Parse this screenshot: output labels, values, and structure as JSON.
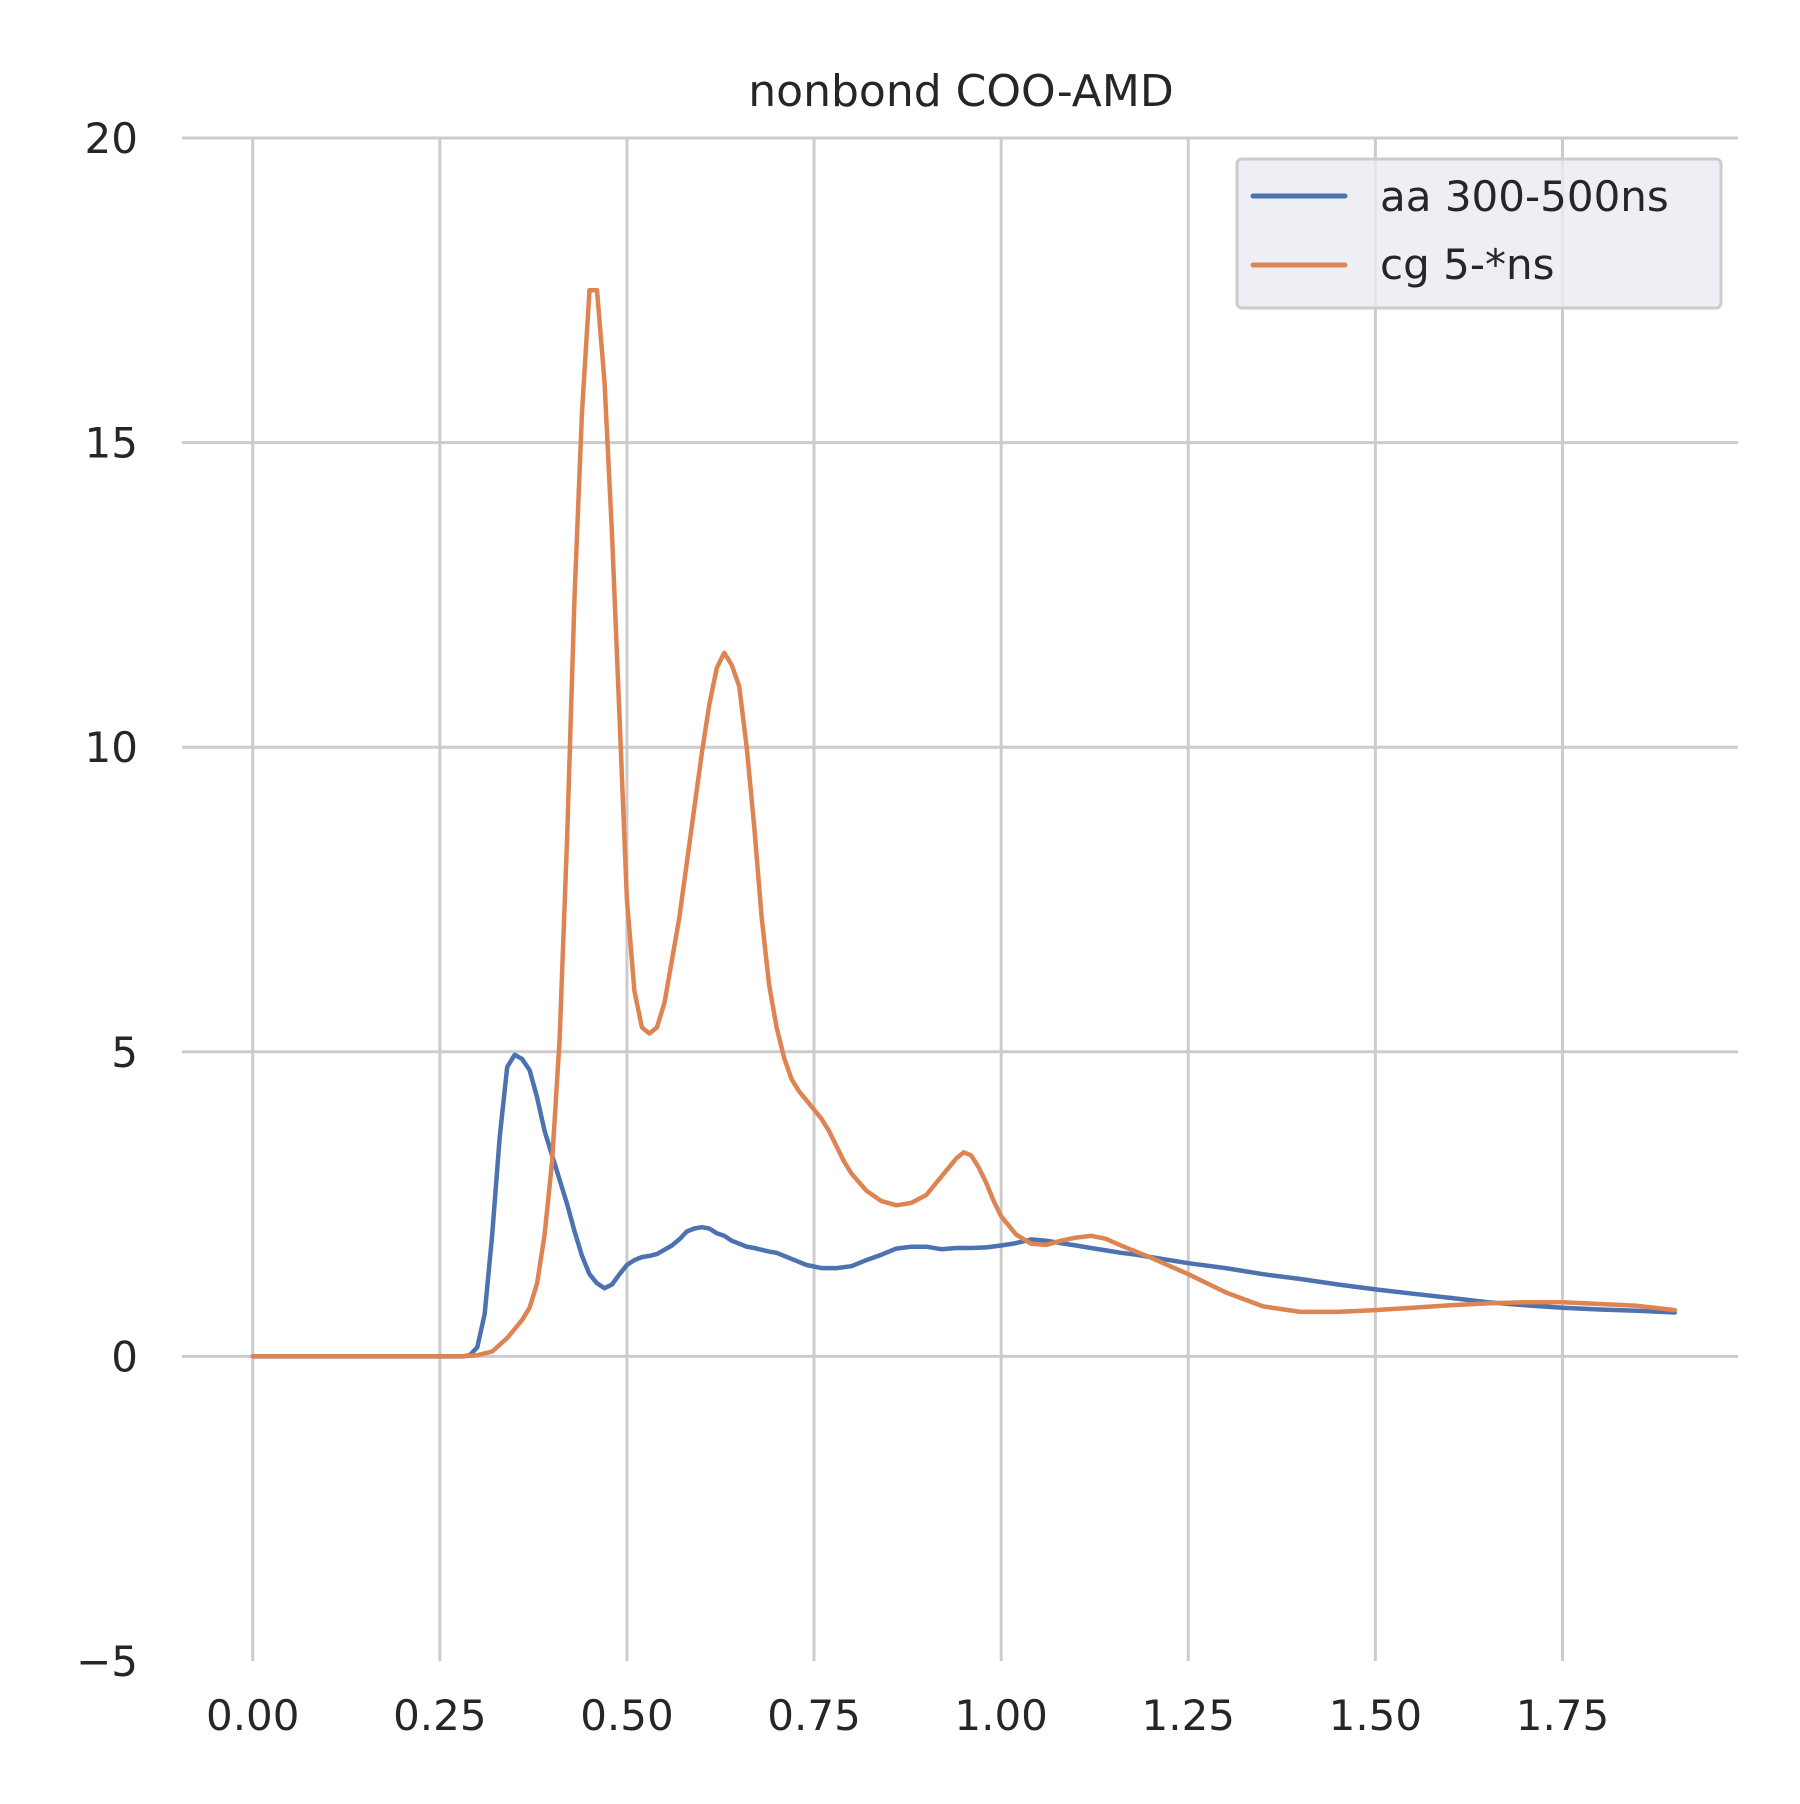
{
  "chart_data": {
    "type": "line",
    "title": "nonbond COO-AMD",
    "xlabel": "",
    "ylabel": "",
    "xlim": [
      -0.0945,
      1.9845
    ],
    "ylim": [
      -5,
      20
    ],
    "xticks": [
      0.0,
      0.25,
      0.5,
      0.75,
      1.0,
      1.25,
      1.5,
      1.75
    ],
    "xtick_labels": [
      "0.00",
      "0.25",
      "0.50",
      "0.75",
      "1.00",
      "1.25",
      "1.50",
      "1.75"
    ],
    "yticks": [
      -5,
      0,
      5,
      10,
      15,
      20
    ],
    "ytick_labels": [
      "−5",
      "0",
      "5",
      "10",
      "15",
      "20"
    ],
    "grid": true,
    "legend_position": "top-right",
    "series": [
      {
        "name": "aa 300-500ns",
        "color": "#4c72b0",
        "x": [
          0.0,
          0.25,
          0.28,
          0.29,
          0.3,
          0.31,
          0.32,
          0.33,
          0.34,
          0.35,
          0.36,
          0.37,
          0.38,
          0.39,
          0.4,
          0.41,
          0.42,
          0.43,
          0.44,
          0.45,
          0.46,
          0.47,
          0.48,
          0.49,
          0.5,
          0.51,
          0.52,
          0.53,
          0.54,
          0.55,
          0.56,
          0.57,
          0.58,
          0.59,
          0.6,
          0.61,
          0.62,
          0.63,
          0.64,
          0.65,
          0.66,
          0.67,
          0.68,
          0.69,
          0.7,
          0.72,
          0.74,
          0.76,
          0.78,
          0.8,
          0.82,
          0.84,
          0.86,
          0.88,
          0.9,
          0.92,
          0.94,
          0.96,
          0.98,
          1.0,
          1.02,
          1.04,
          1.06,
          1.08,
          1.1,
          1.12,
          1.14,
          1.16,
          1.18,
          1.2,
          1.25,
          1.3,
          1.35,
          1.4,
          1.45,
          1.5,
          1.55,
          1.6,
          1.65,
          1.7,
          1.75,
          1.8,
          1.85,
          1.9
        ],
        "y": [
          0.0,
          0.0,
          0.0,
          0.02,
          0.15,
          0.7,
          2.0,
          3.6,
          4.75,
          4.95,
          4.88,
          4.7,
          4.25,
          3.7,
          3.3,
          2.9,
          2.5,
          2.05,
          1.65,
          1.35,
          1.2,
          1.12,
          1.18,
          1.35,
          1.5,
          1.58,
          1.63,
          1.65,
          1.68,
          1.75,
          1.82,
          1.92,
          2.05,
          2.1,
          2.12,
          2.1,
          2.02,
          1.98,
          1.9,
          1.85,
          1.8,
          1.78,
          1.75,
          1.72,
          1.7,
          1.6,
          1.5,
          1.45,
          1.45,
          1.48,
          1.58,
          1.67,
          1.77,
          1.8,
          1.8,
          1.76,
          1.78,
          1.78,
          1.79,
          1.82,
          1.86,
          1.92,
          1.9,
          1.86,
          1.82,
          1.78,
          1.74,
          1.7,
          1.67,
          1.63,
          1.53,
          1.45,
          1.35,
          1.27,
          1.18,
          1.1,
          1.03,
          0.96,
          0.89,
          0.84,
          0.8,
          0.77,
          0.75,
          0.72
        ]
      },
      {
        "name": "cg 5-*ns",
        "color": "#dd8452",
        "x": [
          0.0,
          0.25,
          0.28,
          0.3,
          0.32,
          0.34,
          0.36,
          0.37,
          0.38,
          0.39,
          0.4,
          0.41,
          0.42,
          0.43,
          0.44,
          0.45,
          0.46,
          0.47,
          0.48,
          0.49,
          0.5,
          0.51,
          0.52,
          0.53,
          0.54,
          0.55,
          0.56,
          0.57,
          0.58,
          0.59,
          0.6,
          0.61,
          0.62,
          0.63,
          0.64,
          0.65,
          0.66,
          0.67,
          0.68,
          0.69,
          0.7,
          0.71,
          0.72,
          0.73,
          0.74,
          0.75,
          0.76,
          0.77,
          0.78,
          0.79,
          0.8,
          0.82,
          0.84,
          0.86,
          0.88,
          0.9,
          0.92,
          0.94,
          0.95,
          0.96,
          0.97,
          0.98,
          0.99,
          1.0,
          1.02,
          1.04,
          1.06,
          1.08,
          1.1,
          1.12,
          1.14,
          1.16,
          1.18,
          1.2,
          1.25,
          1.3,
          1.35,
          1.4,
          1.45,
          1.5,
          1.55,
          1.6,
          1.65,
          1.7,
          1.75,
          1.8,
          1.85,
          1.9
        ],
        "y": [
          0.0,
          0.0,
          0.0,
          0.02,
          0.08,
          0.3,
          0.6,
          0.8,
          1.2,
          2.0,
          3.2,
          5.2,
          8.5,
          12.5,
          15.5,
          17.5,
          17.5,
          16.0,
          13.5,
          10.5,
          7.5,
          6.0,
          5.4,
          5.3,
          5.4,
          5.8,
          6.5,
          7.2,
          8.1,
          9.0,
          9.9,
          10.7,
          11.3,
          11.55,
          11.35,
          11.0,
          10.0,
          8.7,
          7.2,
          6.1,
          5.4,
          4.9,
          4.55,
          4.35,
          4.2,
          4.05,
          3.9,
          3.7,
          3.45,
          3.2,
          3.0,
          2.72,
          2.55,
          2.48,
          2.52,
          2.65,
          2.95,
          3.25,
          3.35,
          3.3,
          3.1,
          2.85,
          2.55,
          2.3,
          2.0,
          1.85,
          1.83,
          1.9,
          1.95,
          1.98,
          1.93,
          1.82,
          1.72,
          1.62,
          1.35,
          1.05,
          0.82,
          0.73,
          0.73,
          0.76,
          0.8,
          0.84,
          0.87,
          0.89,
          0.89,
          0.86,
          0.83,
          0.76
        ]
      }
    ]
  }
}
